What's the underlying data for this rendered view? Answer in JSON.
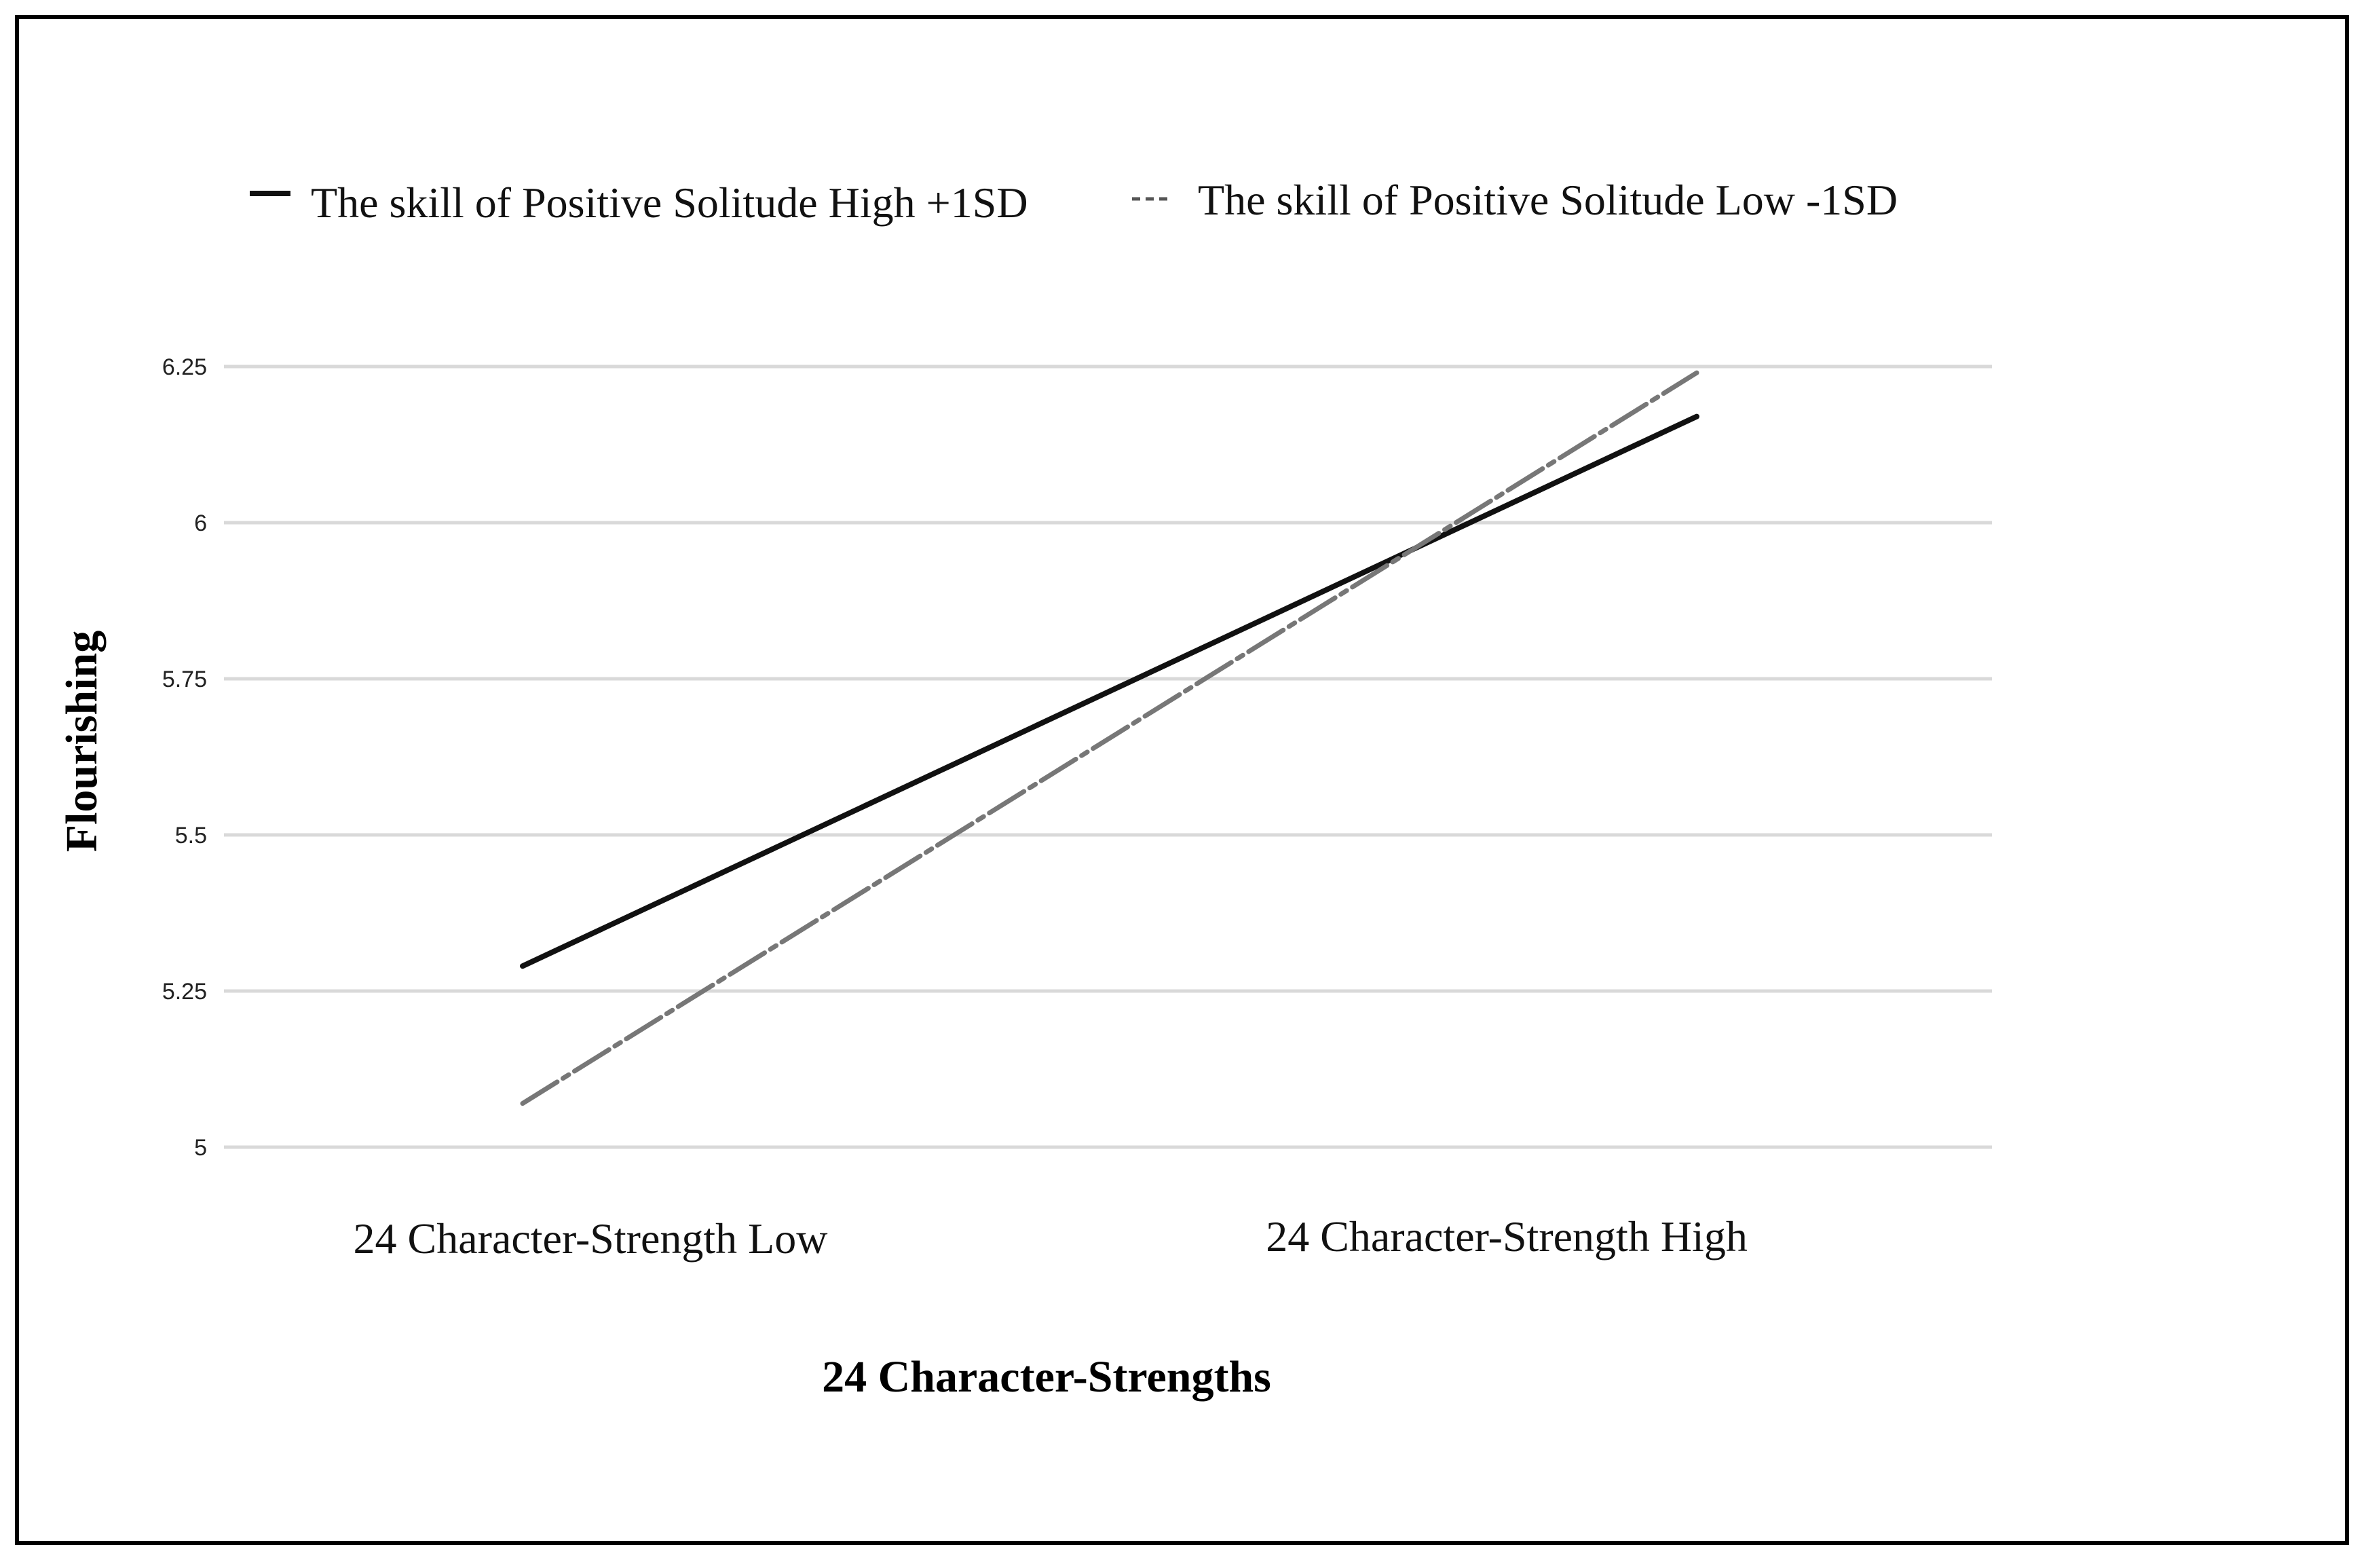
{
  "chart_data": {
    "type": "line",
    "categories": [
      "24 Character-Strength Low",
      "24 Character-Strength High"
    ],
    "series": [
      {
        "name": "The skill of Positive Solitude High +1SD",
        "values": [
          5.29,
          6.17
        ],
        "color": "#111111",
        "dash": "solid"
      },
      {
        "name": "The skill of Positive Solitude Low -1SD",
        "values": [
          5.07,
          6.24
        ],
        "color": "#777777",
        "dash": "dashed"
      }
    ],
    "xlabel": "24 Character-Strengths",
    "ylabel": "Flourishing",
    "ylim": [
      5,
      6.25
    ],
    "yticks": [
      "5",
      "5.25",
      "5.5",
      "5.75",
      "6",
      "6.25"
    ],
    "grid": true,
    "legend_position": "top"
  }
}
